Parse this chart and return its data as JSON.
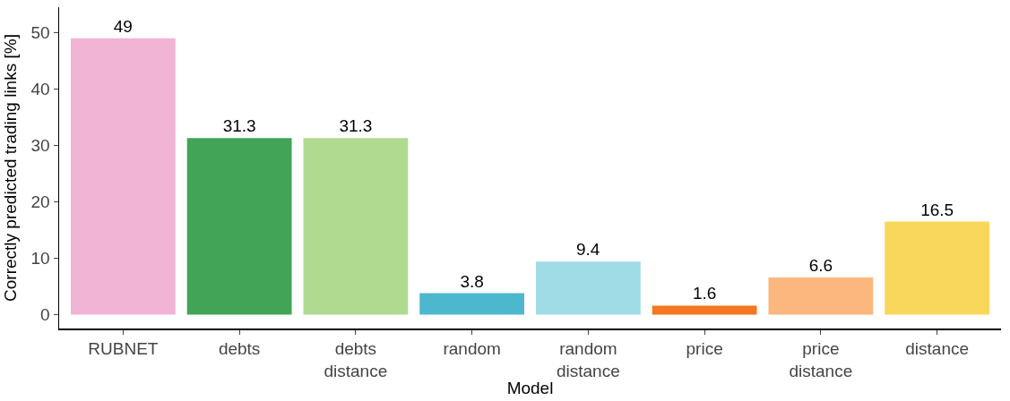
{
  "chart_data": {
    "type": "bar",
    "xlabel": "Model",
    "ylabel": "Correctly predicted trading links [%]",
    "categories": [
      "RUBNET",
      "debts",
      "debts distance",
      "random",
      "random distance",
      "price",
      "price distance",
      "distance"
    ],
    "values": [
      49,
      31.3,
      31.3,
      3.8,
      9.4,
      1.6,
      6.6,
      16.5
    ],
    "colors": [
      "#f1b4d4",
      "#41a456",
      "#b0da90",
      "#4db8cd",
      "#a0dce5",
      "#f47721",
      "#fbb77e",
      "#f9d75a"
    ],
    "ylim": [
      -2.45,
      54.5
    ],
    "yticks": [
      0,
      10,
      20,
      30,
      40,
      50
    ],
    "grid": false,
    "data_labels": true
  }
}
